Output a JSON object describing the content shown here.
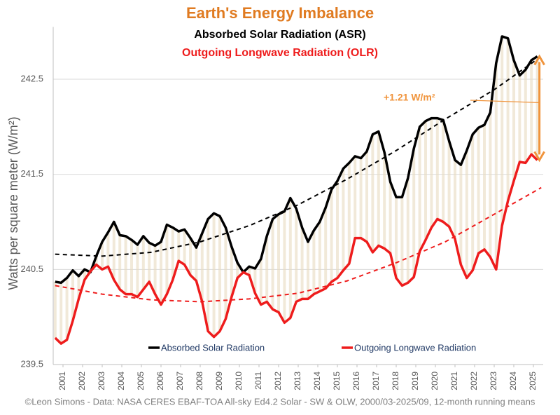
{
  "chart_data": {
    "type": "line",
    "title": "Earth's Energy Imbalance",
    "subtitle": "Absorbed Solar Radiation (ASR)",
    "subtitle_2": "Outgoing Longwave Radiation (OLR)",
    "y_label": "Watts per square meter (W/m²)",
    "source": "©Leon Simons - Data: NASA CERES EBAF-TOA All-sky Ed4.2 Solar - SW & OLW, 2000/03-2025/09, 12-month running means",
    "annotation": "+1.21 W/m²",
    "annotation_color": "#f0943c",
    "x": [
      2000.6,
      2000.9,
      2001.2,
      2001.5,
      2001.8,
      2002.1,
      2002.4,
      2002.7,
      2003.0,
      2003.3,
      2003.6,
      2003.9,
      2004.2,
      2004.5,
      2004.8,
      2005.1,
      2005.4,
      2005.7,
      2006.0,
      2006.3,
      2006.6,
      2006.9,
      2007.2,
      2007.5,
      2007.8,
      2008.1,
      2008.4,
      2008.7,
      2009.0,
      2009.3,
      2009.6,
      2009.9,
      2010.2,
      2010.5,
      2010.8,
      2011.1,
      2011.4,
      2011.7,
      2012.0,
      2012.3,
      2012.6,
      2012.9,
      2013.2,
      2013.5,
      2013.8,
      2014.1,
      2014.4,
      2014.7,
      2015.0,
      2015.3,
      2015.6,
      2015.9,
      2016.2,
      2016.5,
      2016.8,
      2017.1,
      2017.4,
      2017.7,
      2018.0,
      2018.3,
      2018.6,
      2018.9,
      2019.2,
      2019.5,
      2019.8,
      2020.1,
      2020.4,
      2020.7,
      2021.0,
      2021.3,
      2021.6,
      2021.9,
      2022.2,
      2022.5,
      2022.8,
      2023.1,
      2023.4,
      2023.7,
      2024.0,
      2024.3,
      2024.6,
      2024.9,
      2025.2
    ],
    "series": [
      {
        "name": "Absorbed Solar Radiation",
        "color": "#000000",
        "values": [
          240.37,
          240.36,
          240.41,
          240.49,
          240.43,
          240.5,
          240.47,
          240.64,
          240.79,
          240.89,
          241.0,
          240.86,
          240.85,
          240.81,
          240.76,
          240.85,
          240.78,
          240.75,
          240.79,
          240.97,
          240.94,
          240.9,
          240.92,
          240.83,
          240.73,
          240.88,
          241.03,
          241.09,
          241.06,
          240.94,
          240.74,
          240.57,
          240.47,
          240.53,
          240.51,
          240.61,
          240.85,
          241.03,
          241.08,
          241.11,
          241.25,
          241.14,
          240.94,
          240.79,
          240.91,
          241.0,
          241.15,
          241.34,
          241.43,
          241.56,
          241.62,
          241.69,
          241.67,
          241.74,
          241.92,
          241.95,
          241.73,
          241.42,
          241.26,
          241.26,
          241.46,
          241.77,
          242.0,
          242.06,
          242.09,
          242.09,
          242.07,
          241.85,
          241.65,
          241.6,
          241.75,
          241.92,
          241.99,
          242.02,
          242.15,
          242.67,
          242.95,
          242.93,
          242.7,
          242.54,
          242.6,
          242.7,
          242.74
        ]
      },
      {
        "name": "Outgoing Longwave Radiation",
        "color": "#ee1c1c",
        "values": [
          239.78,
          239.72,
          239.76,
          239.96,
          240.19,
          240.39,
          240.48,
          240.55,
          240.5,
          240.53,
          240.39,
          240.29,
          240.24,
          240.24,
          240.21,
          240.29,
          240.37,
          240.24,
          240.13,
          240.24,
          240.39,
          240.59,
          240.55,
          240.44,
          240.38,
          240.16,
          239.85,
          239.79,
          239.85,
          239.98,
          240.21,
          240.41,
          240.47,
          240.44,
          240.25,
          240.13,
          240.16,
          240.08,
          240.05,
          239.94,
          239.99,
          240.16,
          240.19,
          240.19,
          240.24,
          240.27,
          240.3,
          240.37,
          240.41,
          240.49,
          240.56,
          240.83,
          240.83,
          240.79,
          240.68,
          240.75,
          240.72,
          240.67,
          240.41,
          240.33,
          240.36,
          240.42,
          240.69,
          240.81,
          240.94,
          241.03,
          241.0,
          240.95,
          240.82,
          240.55,
          240.41,
          240.49,
          240.67,
          240.71,
          240.63,
          240.5,
          240.96,
          241.22,
          241.43,
          241.63,
          241.62,
          241.71,
          241.65
        ]
      }
    ],
    "trend_x": [
      2000.6,
      2003,
      2005.5,
      2008,
      2010.5,
      2013,
      2015.5,
      2018,
      2020.5,
      2023,
      2025.4
    ],
    "trends": [
      {
        "color": "#000000",
        "values": [
          240.66,
          240.64,
          240.68,
          240.79,
          240.96,
          241.18,
          241.45,
          241.75,
          242.08,
          242.39,
          242.74
        ]
      },
      {
        "color": "#ee1c1c",
        "values": [
          240.33,
          240.24,
          240.18,
          240.16,
          240.19,
          240.25,
          240.38,
          240.57,
          240.79,
          241.08,
          241.36
        ]
      }
    ],
    "fill_color": "#e8dcc0",
    "xlim": [
      2000.5,
      2025.5
    ],
    "xticks": [
      2001,
      2002,
      2003,
      2004,
      2005,
      2006,
      2007,
      2008,
      2009,
      2010,
      2011,
      2012,
      2013,
      2014,
      2015,
      2016,
      2017,
      2018,
      2019,
      2020,
      2021,
      2022,
      2023,
      2024,
      2025
    ],
    "ylim": [
      239.5,
      243.05
    ],
    "yticks": [
      239.5,
      240.5,
      241.5,
      242.5
    ],
    "grid": true,
    "legend": "bottom"
  }
}
